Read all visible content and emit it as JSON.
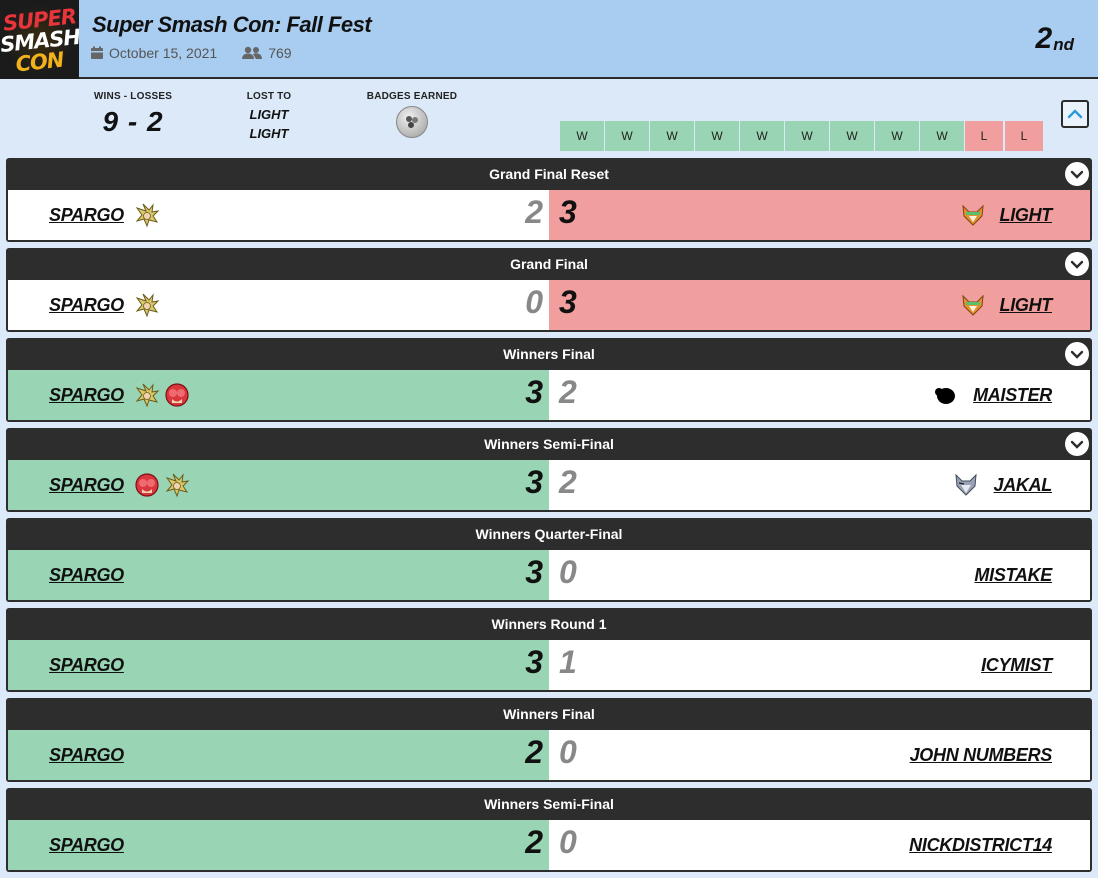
{
  "event": {
    "title": "Super Smash Con: Fall Fest",
    "date": "October 15, 2021",
    "entrants": "769",
    "placing_num": "2",
    "placing_suffix": "nd",
    "logo_lines": [
      "SUPER",
      "SMASH",
      "CON"
    ]
  },
  "summary": {
    "wl_label": "WINS - LOSSES",
    "wl_value": "9 - 2",
    "lost_to_label": "LOST TO",
    "lost_to": [
      "LIGHT",
      "LIGHT"
    ],
    "badges_label": "BADGES EARNED",
    "results": [
      "W",
      "W",
      "W",
      "W",
      "W",
      "W",
      "W",
      "W",
      "W",
      "L",
      "L"
    ]
  },
  "colors": {
    "win": "#99d5b4",
    "loss": "#f19e9e",
    "header_bg": "#a9cdf0",
    "round_bar": "#2d2d2d"
  },
  "matches": [
    {
      "round": "Grand Final Reset",
      "left": {
        "name": "SPARGO",
        "score": "2",
        "chars": [
          "cloud-icon"
        ]
      },
      "right": {
        "name": "LIGHT",
        "score": "3",
        "chars": [
          "fox-icon"
        ]
      },
      "winner": "right",
      "expandable": true
    },
    {
      "round": "Grand Final",
      "left": {
        "name": "SPARGO",
        "score": "0",
        "chars": [
          "cloud-icon"
        ]
      },
      "right": {
        "name": "LIGHT",
        "score": "3",
        "chars": [
          "fox-icon"
        ]
      },
      "winner": "right",
      "expandable": true
    },
    {
      "round": "Winners Final",
      "left": {
        "name": "SPARGO",
        "score": "3",
        "chars": [
          "cloud-icon",
          "pyra-icon"
        ]
      },
      "right": {
        "name": "MAISTER",
        "score": "2",
        "chars": [
          "game-and-watch-icon"
        ]
      },
      "winner": "left",
      "expandable": true
    },
    {
      "round": "Winners Semi-Final",
      "left": {
        "name": "SPARGO",
        "score": "3",
        "chars": [
          "pyra-icon",
          "cloud-icon"
        ]
      },
      "right": {
        "name": "JAKAL",
        "score": "2",
        "chars": [
          "wolf-icon"
        ]
      },
      "winner": "left",
      "expandable": true
    },
    {
      "round": "Winners Quarter-Final",
      "left": {
        "name": "SPARGO",
        "score": "3",
        "chars": []
      },
      "right": {
        "name": "MISTAKE",
        "score": "0",
        "chars": []
      },
      "winner": "left",
      "expandable": false
    },
    {
      "round": "Winners Round 1",
      "left": {
        "name": "SPARGO",
        "score": "3",
        "chars": []
      },
      "right": {
        "name": "ICYMIST",
        "score": "1",
        "chars": []
      },
      "winner": "left",
      "expandable": false
    },
    {
      "round": "Winners Final",
      "left": {
        "name": "SPARGO",
        "score": "2",
        "chars": []
      },
      "right": {
        "name": "JOHN NUMBERS",
        "score": "0",
        "chars": []
      },
      "winner": "left",
      "expandable": false
    },
    {
      "round": "Winners Semi-Final",
      "left": {
        "name": "SPARGO",
        "score": "2",
        "chars": []
      },
      "right": {
        "name": "NICKDISTRICT14",
        "score": "0",
        "chars": []
      },
      "winner": "left",
      "expandable": false
    }
  ]
}
